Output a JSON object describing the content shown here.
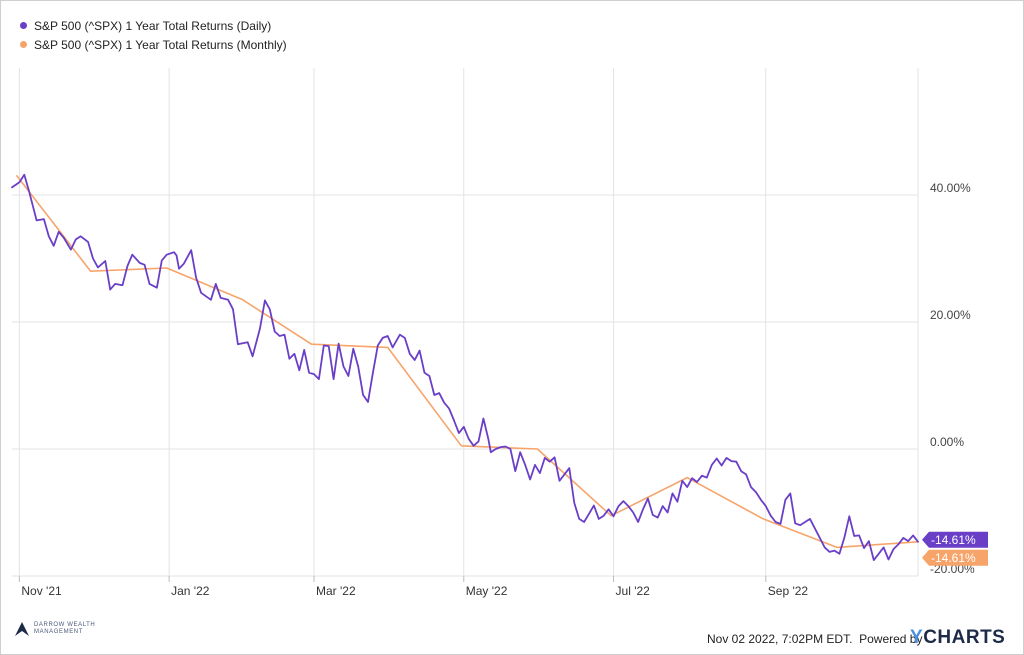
{
  "legend": [
    {
      "label": "S&P 500 (^SPX) 1 Year Total Returns (Daily)",
      "color": "#6a3fc7"
    },
    {
      "label": "S&P 500 (^SPX) 1 Year Total Returns (Monthly)",
      "color": "#f7a46b"
    }
  ],
  "footer": {
    "timestamp": "Nov 02 2022, 7:02PM EDT.",
    "powered_by": "Powered by",
    "brand_y": "Y",
    "brand_rest": "CHARTS"
  },
  "logo": {
    "line1": "DARROW WEALTH",
    "line2": "MANAGEMENT"
  },
  "chart_data": {
    "type": "line",
    "title": "",
    "xlabel": "",
    "ylabel": "",
    "x_ticks": [
      {
        "label": "Nov '21",
        "date": "2021-11-01"
      },
      {
        "label": "Jan '22",
        "date": "2022-01-01"
      },
      {
        "label": "Mar '22",
        "date": "2022-03-01"
      },
      {
        "label": "May '22",
        "date": "2022-05-01"
      },
      {
        "label": "Jul '22",
        "date": "2022-07-01"
      },
      {
        "label": "Sep '22",
        "date": "2022-09-01"
      }
    ],
    "y_ticks": [
      {
        "label": "40.00%",
        "value": 40
      },
      {
        "label": "20.00%",
        "value": 20
      },
      {
        "label": "0.00%",
        "value": 0
      },
      {
        "label": "-20.00%",
        "value": -20
      }
    ],
    "xlim": [
      "2021-10-29",
      "2022-11-02"
    ],
    "ylim": [
      -20,
      60
    ],
    "grid": true,
    "legend_position": "top-left",
    "series": [
      {
        "name": "S&P 500 (^SPX) 1 Year Total Returns (Daily)",
        "color": "#6a3fc7",
        "last_value_label": "-14.61%",
        "points": [
          [
            "2021-10-29",
            41.2
          ],
          [
            "2021-11-01",
            42.0
          ],
          [
            "2021-11-03",
            43.2
          ],
          [
            "2021-11-05",
            40.5
          ],
          [
            "2021-11-08",
            36.0
          ],
          [
            "2021-11-11",
            36.2
          ],
          [
            "2021-11-13",
            33.5
          ],
          [
            "2021-11-15",
            32.0
          ],
          [
            "2021-11-17",
            34.2
          ],
          [
            "2021-11-19",
            33.3
          ],
          [
            "2021-11-22",
            31.4
          ],
          [
            "2021-11-24",
            33.0
          ],
          [
            "2021-11-26",
            33.5
          ],
          [
            "2021-11-29",
            32.6
          ],
          [
            "2021-12-01",
            30.0
          ],
          [
            "2021-12-03",
            28.6
          ],
          [
            "2021-12-06",
            29.6
          ],
          [
            "2021-12-08",
            25.1
          ],
          [
            "2021-12-10",
            26.0
          ],
          [
            "2021-12-13",
            25.8
          ],
          [
            "2021-12-15",
            28.8
          ],
          [
            "2021-12-17",
            30.6
          ],
          [
            "2021-12-20",
            29.3
          ],
          [
            "2021-12-22",
            29.0
          ],
          [
            "2021-12-24",
            26.0
          ],
          [
            "2021-12-27",
            25.4
          ],
          [
            "2021-12-29",
            29.7
          ],
          [
            "2021-12-31",
            30.6
          ],
          [
            "2022-01-03",
            31.0
          ],
          [
            "2022-01-04",
            30.5
          ],
          [
            "2022-01-05",
            28.4
          ],
          [
            "2022-01-07",
            29.2
          ],
          [
            "2022-01-10",
            31.3
          ],
          [
            "2022-01-12",
            27.0
          ],
          [
            "2022-01-14",
            24.6
          ],
          [
            "2022-01-18",
            23.5
          ],
          [
            "2022-01-20",
            26.0
          ],
          [
            "2022-01-22",
            23.8
          ],
          [
            "2022-01-25",
            23.5
          ],
          [
            "2022-01-27",
            22.0
          ],
          [
            "2022-01-29",
            16.5
          ],
          [
            "2022-02-02",
            16.8
          ],
          [
            "2022-02-04",
            14.6
          ],
          [
            "2022-02-07",
            19.0
          ],
          [
            "2022-02-09",
            23.4
          ],
          [
            "2022-02-11",
            22.0
          ],
          [
            "2022-02-13",
            18.5
          ],
          [
            "2022-02-15",
            17.8
          ],
          [
            "2022-02-17",
            18.0
          ],
          [
            "2022-02-19",
            14.2
          ],
          [
            "2022-02-21",
            15.0
          ],
          [
            "2022-02-23",
            12.4
          ],
          [
            "2022-02-25",
            15.6
          ],
          [
            "2022-02-27",
            12.0
          ],
          [
            "2022-03-01",
            11.8
          ],
          [
            "2022-03-03",
            11.0
          ],
          [
            "2022-03-05",
            16.3
          ],
          [
            "2022-03-07",
            16.2
          ],
          [
            "2022-03-09",
            11.0
          ],
          [
            "2022-03-11",
            16.6
          ],
          [
            "2022-03-13",
            13.0
          ],
          [
            "2022-03-15",
            11.5
          ],
          [
            "2022-03-17",
            15.8
          ],
          [
            "2022-03-19",
            13.0
          ],
          [
            "2022-03-21",
            8.5
          ],
          [
            "2022-03-23",
            7.4
          ],
          [
            "2022-03-25",
            12.0
          ],
          [
            "2022-03-27",
            16.3
          ],
          [
            "2022-03-29",
            17.5
          ],
          [
            "2022-03-31",
            17.8
          ],
          [
            "2022-04-02",
            16.0
          ],
          [
            "2022-04-05",
            18.0
          ],
          [
            "2022-04-07",
            17.5
          ],
          [
            "2022-04-09",
            15.0
          ],
          [
            "2022-04-11",
            14.0
          ],
          [
            "2022-04-13",
            15.5
          ],
          [
            "2022-04-15",
            12.0
          ],
          [
            "2022-04-17",
            11.5
          ],
          [
            "2022-04-19",
            8.5
          ],
          [
            "2022-04-21",
            8.8
          ],
          [
            "2022-04-23",
            7.3
          ],
          [
            "2022-04-25",
            6.4
          ],
          [
            "2022-04-27",
            4.5
          ],
          [
            "2022-04-29",
            2.5
          ],
          [
            "2022-05-01",
            3.5
          ],
          [
            "2022-05-03",
            1.6
          ],
          [
            "2022-05-05",
            0.5
          ],
          [
            "2022-05-07",
            1.2
          ],
          [
            "2022-05-09",
            4.8
          ],
          [
            "2022-05-11",
            1.6
          ],
          [
            "2022-05-12",
            -0.5
          ],
          [
            "2022-05-14",
            0.0
          ],
          [
            "2022-05-16",
            0.3
          ],
          [
            "2022-05-18",
            0.4
          ],
          [
            "2022-05-20",
            0.0
          ],
          [
            "2022-05-22",
            -3.5
          ],
          [
            "2022-05-24",
            -0.5
          ],
          [
            "2022-05-26",
            -2.5
          ],
          [
            "2022-05-28",
            -4.8
          ],
          [
            "2022-05-30",
            -2.5
          ],
          [
            "2022-06-01",
            -3.8
          ],
          [
            "2022-06-03",
            -1.4
          ],
          [
            "2022-06-05",
            -2.0
          ],
          [
            "2022-06-07",
            -1.3
          ],
          [
            "2022-06-09",
            -5.0
          ],
          [
            "2022-06-11",
            -4.0
          ],
          [
            "2022-06-13",
            -3.0
          ],
          [
            "2022-06-15",
            -8.5
          ],
          [
            "2022-06-17",
            -11.0
          ],
          [
            "2022-06-19",
            -11.5
          ],
          [
            "2022-06-21",
            -10.2
          ],
          [
            "2022-06-23",
            -8.9
          ],
          [
            "2022-06-25",
            -11.0
          ],
          [
            "2022-06-27",
            -10.5
          ],
          [
            "2022-06-29",
            -9.5
          ],
          [
            "2022-07-01",
            -10.6
          ],
          [
            "2022-07-03",
            -9.0
          ],
          [
            "2022-07-05",
            -8.2
          ],
          [
            "2022-07-07",
            -9.0
          ],
          [
            "2022-07-09",
            -10.0
          ],
          [
            "2022-07-11",
            -11.5
          ],
          [
            "2022-07-13",
            -9.5
          ],
          [
            "2022-07-15",
            -7.8
          ],
          [
            "2022-07-17",
            -10.4
          ],
          [
            "2022-07-19",
            -10.8
          ],
          [
            "2022-07-21",
            -9.0
          ],
          [
            "2022-07-23",
            -10.0
          ],
          [
            "2022-07-25",
            -7.0
          ],
          [
            "2022-07-27",
            -8.3
          ],
          [
            "2022-07-29",
            -5.0
          ],
          [
            "2022-07-31",
            -6.0
          ],
          [
            "2022-08-02",
            -4.6
          ],
          [
            "2022-08-04",
            -5.2
          ],
          [
            "2022-08-06",
            -4.2
          ],
          [
            "2022-08-08",
            -4.5
          ],
          [
            "2022-08-10",
            -2.5
          ],
          [
            "2022-08-12",
            -1.5
          ],
          [
            "2022-08-14",
            -2.6
          ],
          [
            "2022-08-16",
            -1.4
          ],
          [
            "2022-08-18",
            -1.9
          ],
          [
            "2022-08-20",
            -2.0
          ],
          [
            "2022-08-22",
            -3.5
          ],
          [
            "2022-08-24",
            -4.0
          ],
          [
            "2022-08-26",
            -6.0
          ],
          [
            "2022-08-28",
            -6.8
          ],
          [
            "2022-08-30",
            -8.0
          ],
          [
            "2022-09-01",
            -9.0
          ],
          [
            "2022-09-03",
            -10.5
          ],
          [
            "2022-09-05",
            -11.5
          ],
          [
            "2022-09-07",
            -11.8
          ],
          [
            "2022-09-09",
            -8.0
          ],
          [
            "2022-09-11",
            -7.0
          ],
          [
            "2022-09-13",
            -11.7
          ],
          [
            "2022-09-15",
            -12.0
          ],
          [
            "2022-09-17",
            -11.5
          ],
          [
            "2022-09-19",
            -11.0
          ],
          [
            "2022-09-21",
            -12.5
          ],
          [
            "2022-09-23",
            -14.0
          ],
          [
            "2022-09-25",
            -15.5
          ],
          [
            "2022-09-27",
            -16.2
          ],
          [
            "2022-09-29",
            -16.0
          ],
          [
            "2022-10-01",
            -16.5
          ],
          [
            "2022-10-03",
            -14.0
          ],
          [
            "2022-10-05",
            -10.6
          ],
          [
            "2022-10-07",
            -13.7
          ],
          [
            "2022-10-09",
            -13.6
          ],
          [
            "2022-10-11",
            -15.6
          ],
          [
            "2022-10-13",
            -14.5
          ],
          [
            "2022-10-15",
            -17.5
          ],
          [
            "2022-10-17",
            -16.5
          ],
          [
            "2022-10-19",
            -15.5
          ],
          [
            "2022-10-21",
            -17.4
          ],
          [
            "2022-10-23",
            -15.8
          ],
          [
            "2022-10-25",
            -15.0
          ],
          [
            "2022-10-27",
            -14.0
          ],
          [
            "2022-10-29",
            -14.5
          ],
          [
            "2022-10-31",
            -13.6
          ],
          [
            "2022-11-02",
            -14.61
          ]
        ]
      },
      {
        "name": "S&P 500 (^SPX) 1 Year Total Returns (Monthly)",
        "color": "#f7a46b",
        "last_value_label": "-14.61%",
        "points": [
          [
            "2021-10-31",
            43.0
          ],
          [
            "2021-11-30",
            28.0
          ],
          [
            "2021-12-31",
            28.5
          ],
          [
            "2022-01-31",
            23.5
          ],
          [
            "2022-02-28",
            16.5
          ],
          [
            "2022-03-31",
            16.0
          ],
          [
            "2022-04-30",
            0.5
          ],
          [
            "2022-05-31",
            0.0
          ],
          [
            "2022-06-30",
            -10.5
          ],
          [
            "2022-07-31",
            -4.5
          ],
          [
            "2022-08-31",
            -11.0
          ],
          [
            "2022-09-30",
            -15.5
          ],
          [
            "2022-11-02",
            -14.61
          ]
        ]
      }
    ]
  }
}
